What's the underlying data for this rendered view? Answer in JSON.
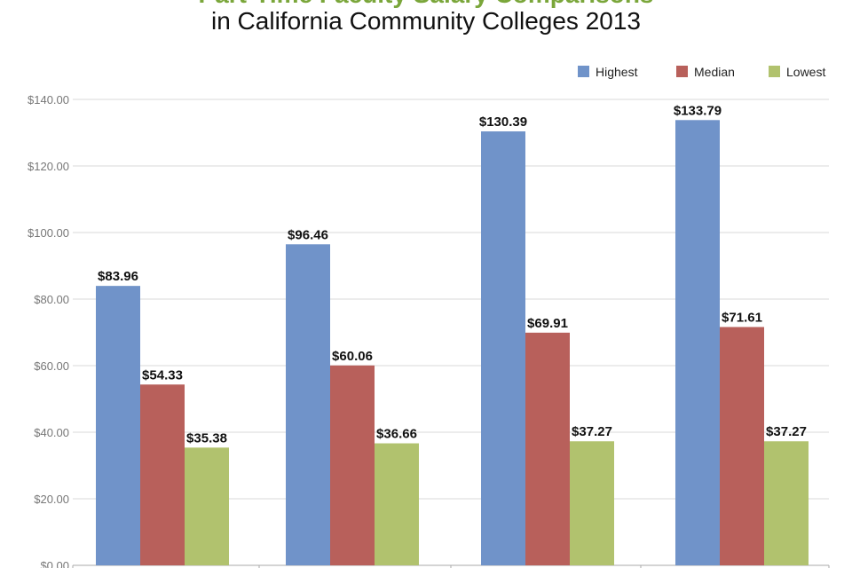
{
  "chart_data": {
    "type": "bar",
    "title": "Part-Time Faculty Salary Comparisons",
    "subtitle": "in California Community Colleges 2013",
    "categories": [
      "",
      "",
      "",
      ""
    ],
    "series": [
      {
        "name": "Highest",
        "values": [
          83.96,
          96.46,
          130.39,
          133.79
        ],
        "labels": [
          "$83.96",
          "$96.46",
          "$130.39",
          "$133.79"
        ],
        "color": "#7093c9"
      },
      {
        "name": "Median",
        "values": [
          54.33,
          60.06,
          69.91,
          71.61
        ],
        "labels": [
          "$54.33",
          "$60.06",
          "$69.91",
          "$71.61"
        ],
        "color": "#b8605b"
      },
      {
        "name": "Lowest",
        "values": [
          35.38,
          36.66,
          37.27,
          37.27
        ],
        "labels": [
          "$35.38",
          "$36.66",
          "$37.27",
          "$37.27"
        ],
        "color": "#b1c26e"
      }
    ],
    "ylim": [
      0,
      140
    ],
    "yticks": [
      0,
      20,
      40,
      60,
      80,
      100,
      120,
      140
    ],
    "ytick_labels": [
      "$0.00",
      "$20.00",
      "$40.00",
      "$60.00",
      "$80.00",
      "$100.00",
      "$120.00",
      "$140.00"
    ],
    "grid": true,
    "legend_position": "top-right"
  }
}
